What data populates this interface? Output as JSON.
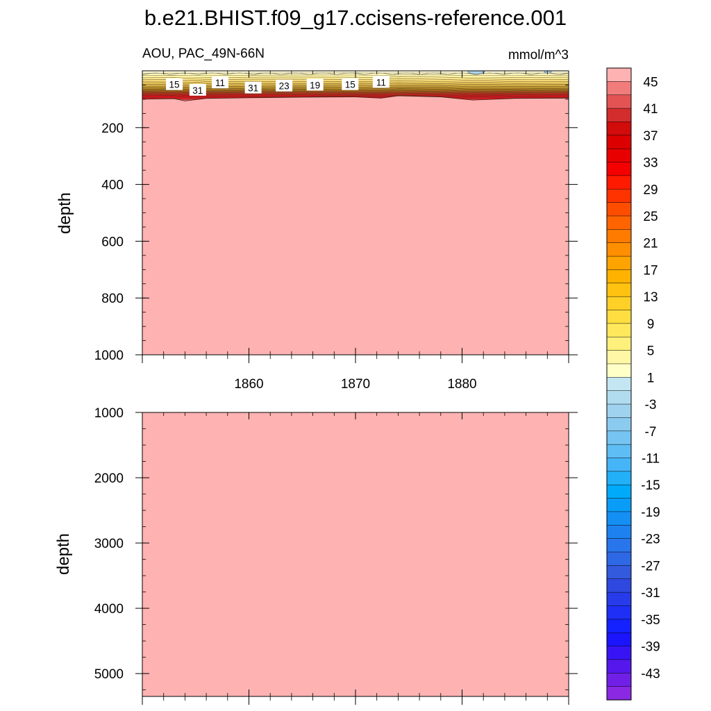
{
  "title": "b.e21.BHIST.f09_g17.ccisens-reference.001",
  "chart_data": [
    {
      "type": "heatmap",
      "panel": "upper",
      "left_string": "AOU, PAC_49N-66N",
      "right_string": "mmol/m^3",
      "ylabel": "depth",
      "xlim": [
        1850,
        1890
      ],
      "ylim": [
        1000,
        0
      ],
      "yticks": [
        "200",
        "400",
        "600",
        "800",
        "1000"
      ],
      "xticks": [
        "1860",
        "1870",
        "1880"
      ],
      "contour_labels": [
        {
          "text": "15",
          "year": 1853.0,
          "depth": 48
        },
        {
          "text": "31",
          "year": 1855.2,
          "depth": 68
        },
        {
          "text": "11",
          "year": 1857.3,
          "depth": 42
        },
        {
          "text": "31",
          "year": 1860.4,
          "depth": 60
        },
        {
          "text": "23",
          "year": 1863.3,
          "depth": 53
        },
        {
          "text": "19",
          "year": 1866.2,
          "depth": 50
        },
        {
          "text": "15",
          "year": 1869.5,
          "depth": 48
        },
        {
          "text": "11",
          "year": 1872.4,
          "depth": 40
        }
      ],
      "mixed_layer_depth": [
        {
          "year": 1850,
          "depth": 100
        },
        {
          "year": 1853,
          "depth": 98
        },
        {
          "year": 1854,
          "depth": 106
        },
        {
          "year": 1856,
          "depth": 97
        },
        {
          "year": 1860,
          "depth": 95
        },
        {
          "year": 1865,
          "depth": 93
        },
        {
          "year": 1870,
          "depth": 92
        },
        {
          "year": 1872.4,
          "depth": 96
        },
        {
          "year": 1874,
          "depth": 88
        },
        {
          "year": 1878,
          "depth": 92
        },
        {
          "year": 1881,
          "depth": 103
        },
        {
          "year": 1885,
          "depth": 97
        },
        {
          "year": 1890,
          "depth": 96
        }
      ],
      "fill_below_value": ">45"
    },
    {
      "type": "heatmap",
      "panel": "lower",
      "ylabel": "depth",
      "xlim": [
        1850,
        1890
      ],
      "ylim": [
        5350,
        1000
      ],
      "yticks": [
        "1000",
        "2000",
        "3000",
        "4000",
        "5000"
      ],
      "fill_value": ">45"
    }
  ],
  "colorbar": {
    "labels": [
      "45",
      "41",
      "37",
      "33",
      "29",
      "25",
      "21",
      "17",
      "13",
      "9",
      "5",
      "1",
      "-3",
      "-7",
      "-11",
      "-15",
      "-19",
      "-23",
      "-27",
      "-31",
      "-35",
      "-39",
      "-43"
    ],
    "colors_top_to_bottom": [
      "#ffb2b2",
      "#f17c7c",
      "#e35353",
      "#d42d2d",
      "#d20b0b",
      "#dc0000",
      "#e80000",
      "#f40000",
      "#ff1a00",
      "#ff3300",
      "#ff4d00",
      "#ff6400",
      "#ff7b00",
      "#ff8f00",
      "#ffa300",
      "#ffb300",
      "#ffc211",
      "#ffd027",
      "#ffde42",
      "#ffe85c",
      "#fff07c",
      "#fff7a6",
      "#ffffc8",
      "#c4e6f2",
      "#b1dcf0",
      "#9fd2ef",
      "#8ccbf0",
      "#75c4f2",
      "#5ebdf4",
      "#45b5f7",
      "#22b0f9",
      "#00aafb",
      "#0a9df8",
      "#148ff4",
      "#1d82f0",
      "#2975ec",
      "#2f68e5",
      "#3359dc",
      "#2f48df",
      "#273bea",
      "#1f2ff5",
      "#1422ff",
      "#1a14ff",
      "#3814f5",
      "#5518ec",
      "#7020e6",
      "#8a28e2"
    ]
  }
}
